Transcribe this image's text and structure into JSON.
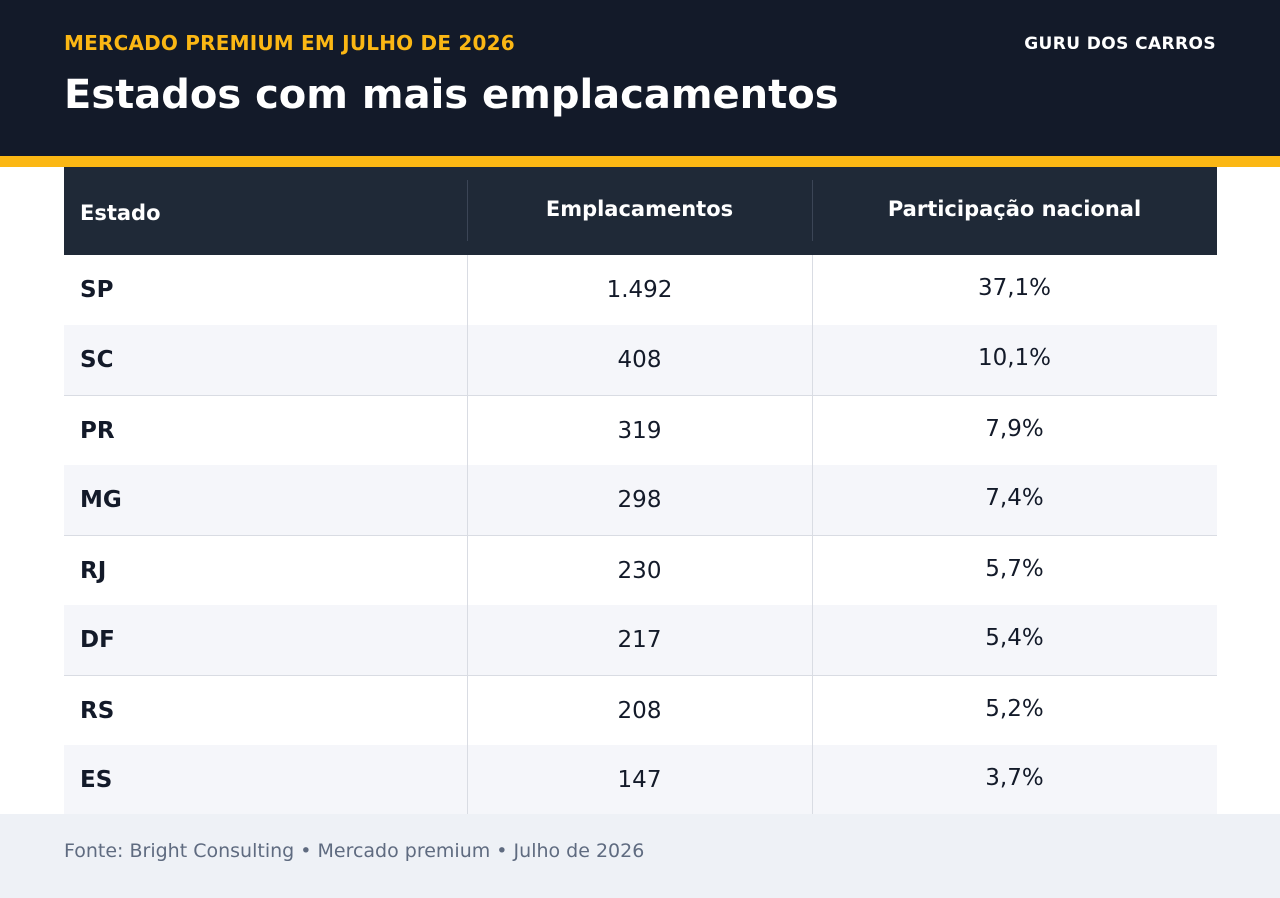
{
  "header": {
    "kicker": "MERCADO PREMIUM EM JULHO DE 2026",
    "brand": "GURU DOS CARROS",
    "title": "Estados com mais emplacamentos"
  },
  "colors": {
    "header_bg": "#131a29",
    "accent": "#fbb714",
    "table_header_bg": "#1f2937",
    "row_alt_bg": "#f5f6fa",
    "footer_bg": "#eef1f6"
  },
  "chart_data": {
    "type": "table",
    "columns": [
      "Estado",
      "Emplacamentos",
      "Participação nacional"
    ],
    "rows": [
      [
        "SP",
        "1.492",
        "37,1%"
      ],
      [
        "SC",
        "408",
        "10,1%"
      ],
      [
        "PR",
        "319",
        "7,9%"
      ],
      [
        "MG",
        "298",
        "7,4%"
      ],
      [
        "RJ",
        "230",
        "5,7%"
      ],
      [
        "DF",
        "217",
        "5,4%"
      ],
      [
        "RS",
        "208",
        "5,2%"
      ],
      [
        "ES",
        "147",
        "3,7%"
      ]
    ]
  },
  "footer": {
    "source": "Fonte: Bright Consulting • Mercado premium • Julho de 2026"
  }
}
